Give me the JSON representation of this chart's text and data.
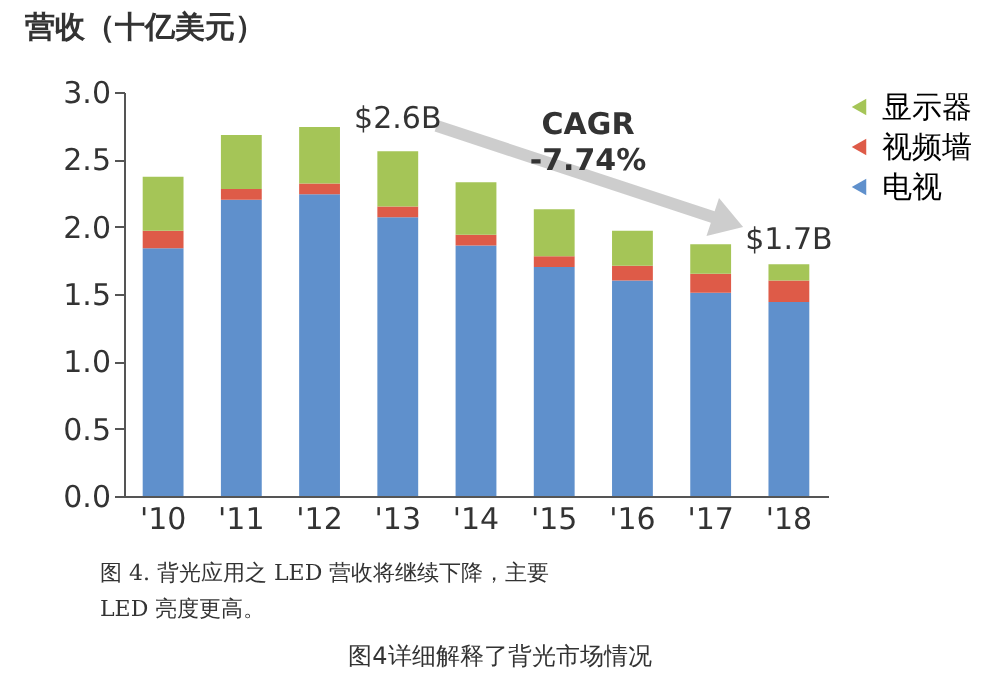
{
  "chart_data": {
    "type": "bar",
    "stacked": true,
    "ylabel": "营收（十亿美元）",
    "categories": [
      "'10",
      "'11",
      "'12",
      "'13",
      "'14",
      "'15",
      "'16",
      "'17",
      "'18"
    ],
    "series": [
      {
        "name": "电视",
        "color": "#5f90cc",
        "values": [
          1.84,
          2.2,
          2.24,
          2.07,
          1.86,
          1.7,
          1.6,
          1.51,
          1.44
        ]
      },
      {
        "name": "视频墙",
        "color": "#de5b48",
        "values": [
          0.13,
          0.08,
          0.08,
          0.08,
          0.08,
          0.08,
          0.11,
          0.14,
          0.16
        ]
      },
      {
        "name": "显示器",
        "color": "#a5c557",
        "values": [
          0.4,
          0.4,
          0.42,
          0.41,
          0.39,
          0.35,
          0.26,
          0.22,
          0.12
        ]
      }
    ],
    "ylim": [
      0,
      3
    ],
    "yticks": [
      {
        "value": 0,
        "label": "0.0"
      },
      {
        "value": 0.5,
        "label": "0.5"
      },
      {
        "value": 1,
        "label": "1.0"
      },
      {
        "value": 1.5,
        "label": "1.5"
      },
      {
        "value": 2,
        "label": "2.0"
      },
      {
        "value": 2.5,
        "label": "2.5"
      },
      {
        "value": 3,
        "label": "3.0"
      }
    ],
    "grid": false,
    "legend": "right",
    "annotations": [
      {
        "text": "$2.6B",
        "x": "'13",
        "y": 2.6
      },
      {
        "text": "$1.7B",
        "x": "'18",
        "y": 1.7
      },
      "CAGR -7.74%",
      "图 4. 背光应用之 LED 营收将继续下降，主要",
      "LED 亮度更高。",
      "图4详细解释了背光市场情况"
    ]
  }
}
